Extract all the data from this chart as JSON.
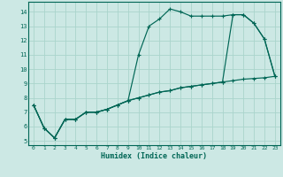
{
  "xlabel": "Humidex (Indice chaleur)",
  "bg_color": "#cce8e4",
  "grid_color": "#aad4cc",
  "line_color": "#006655",
  "spine_color": "#006655",
  "xlim": [
    -0.5,
    23.5
  ],
  "ylim": [
    4.7,
    14.7
  ],
  "yticks": [
    5,
    6,
    7,
    8,
    9,
    10,
    11,
    12,
    13,
    14
  ],
  "xticks": [
    0,
    1,
    2,
    3,
    4,
    5,
    6,
    7,
    8,
    9,
    10,
    11,
    12,
    13,
    14,
    15,
    16,
    17,
    18,
    19,
    20,
    21,
    22,
    23
  ],
  "line1_x": [
    0,
    1,
    2,
    3,
    4,
    5,
    6,
    7,
    8,
    9,
    10,
    11,
    12,
    13,
    14,
    15,
    16,
    17,
    18,
    19,
    20,
    21,
    22,
    23
  ],
  "line1_y": [
    7.5,
    5.9,
    5.2,
    6.5,
    6.5,
    7.0,
    7.0,
    7.2,
    7.5,
    7.8,
    11.0,
    13.0,
    13.5,
    14.2,
    14.0,
    13.7,
    13.7,
    13.7,
    13.7,
    13.8,
    13.8,
    13.2,
    12.1,
    9.5
  ],
  "line2_x": [
    0,
    1,
    2,
    3,
    4,
    5,
    6,
    7,
    8,
    9,
    10,
    11,
    12,
    13,
    14,
    15,
    16,
    17,
    18,
    19,
    20,
    21,
    22,
    23
  ],
  "line2_y": [
    7.5,
    5.9,
    5.2,
    6.5,
    6.5,
    7.0,
    7.0,
    7.2,
    7.5,
    7.8,
    8.0,
    8.2,
    8.4,
    8.5,
    8.7,
    8.8,
    8.9,
    9.0,
    9.1,
    9.2,
    9.3,
    9.35,
    9.4,
    9.5
  ],
  "line3_x": [
    0,
    1,
    2,
    3,
    4,
    5,
    6,
    7,
    8,
    9,
    10,
    11,
    12,
    13,
    14,
    15,
    16,
    17,
    18,
    19,
    20,
    21,
    22,
    23
  ],
  "line3_y": [
    7.5,
    5.9,
    5.2,
    6.5,
    6.5,
    7.0,
    7.0,
    7.2,
    7.5,
    7.8,
    8.0,
    8.2,
    8.4,
    8.5,
    8.7,
    8.8,
    8.9,
    9.0,
    9.1,
    13.8,
    13.8,
    13.2,
    12.1,
    9.5
  ]
}
